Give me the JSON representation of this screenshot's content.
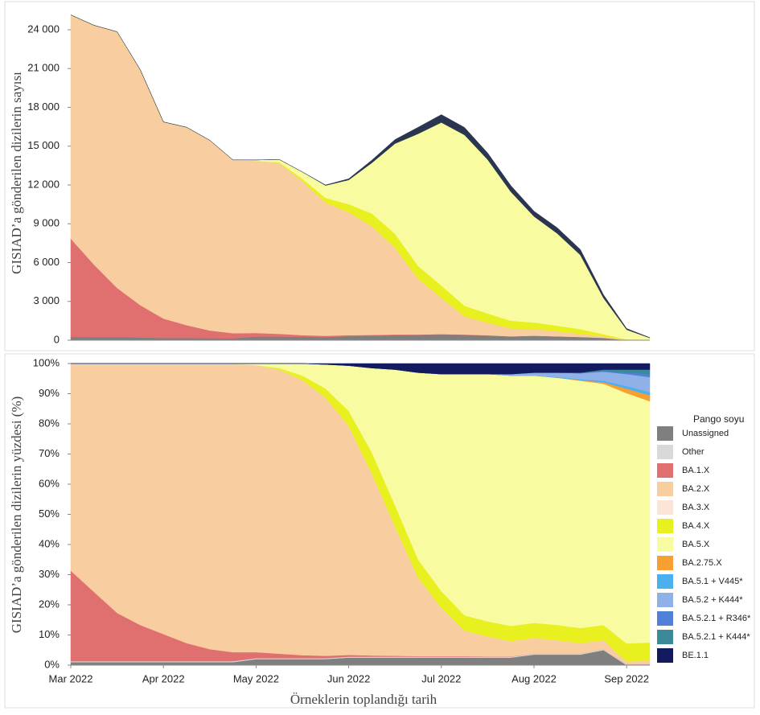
{
  "chart_data": [
    {
      "type": "area",
      "stacked": true,
      "y_label": "GISIAD’a gönderilen dizilerin sayısı",
      "ylim": [
        0,
        25800
      ],
      "yticks": [
        0,
        {
          "value": 3000,
          "label": "3 000"
        },
        {
          "value": 6000,
          "label": "6 000"
        },
        {
          "value": 9000,
          "label": "9 000"
        },
        {
          "value": 12000,
          "label": "12 000"
        },
        {
          "value": 15000,
          "label": "15 000"
        },
        {
          "value": 18000,
          "label": "18 000"
        },
        {
          "value": 21000,
          "label": "21 000"
        },
        {
          "value": 24000,
          "label": "24 000"
        }
      ],
      "series": [
        {
          "color": "#7f7f7f",
          "values": [
            250,
            245,
            240,
            210,
            170,
            165,
            155,
            140,
            280,
            280,
            260,
            240,
            310,
            350,
            390,
            410,
            440,
            410,
            360,
            300,
            350,
            300,
            250,
            180,
            0,
            0
          ]
        },
        {
          "color": "#e07070",
          "values": [
            7600,
            5600,
            3800,
            2500,
            1500,
            1000,
            600,
            400,
            280,
            210,
            130,
            100,
            80,
            60,
            50,
            30,
            30,
            30,
            20,
            0,
            0,
            0,
            0,
            0,
            0,
            0
          ]
        },
        {
          "color": "#f8cda0",
          "values": [
            17300,
            18500,
            19800,
            18200,
            15200,
            15300,
            14700,
            13400,
            13300,
            13200,
            11900,
            10300,
            9500,
            8400,
            6700,
            4300,
            2800,
            1400,
            960,
            610,
            520,
            390,
            250,
            110,
            10,
            0
          ]
        },
        {
          "color": "#e8f020",
          "values": [
            0,
            0,
            0,
            0,
            0,
            0,
            0,
            0,
            0,
            70,
            195,
            360,
            625,
            980,
            1085,
            990,
            960,
            825,
            725,
            600,
            500,
            435,
            350,
            175,
            54,
            12
          ]
        },
        {
          "color": "#f8fba0",
          "values": [
            0,
            0,
            0,
            0,
            0,
            0,
            0,
            0,
            70,
            210,
            520,
            960,
            1875,
            3920,
            6975,
            10230,
            12600,
            13200,
            11890,
            9960,
            8200,
            7130,
            5740,
            2800,
            750,
            160
          ]
        },
        {
          "color": "#2a3550",
          "values": [
            0,
            0,
            0,
            0,
            0,
            0,
            0,
            0,
            0,
            0,
            0,
            36,
            88,
            210,
            310,
            500,
            610,
            580,
            510,
            480,
            400,
            440,
            420,
            250,
            90,
            25
          ]
        }
      ]
    },
    {
      "type": "area",
      "stacked": true,
      "y_label": "GISIAD’a gönderilen dizilerin yüzdesi (%)",
      "x_label": "Örneklerin toplandığı tarih",
      "legend_title": "Pango soyu",
      "categories": [
        "Mar 2022",
        null,
        null,
        null,
        "Apr 2022",
        null,
        null,
        null,
        "May 2022",
        null,
        null,
        null,
        "Jun 2022",
        null,
        null,
        null,
        "Jul 2022",
        null,
        null,
        null,
        "Aug 2022",
        null,
        null,
        null,
        "Sep 2022",
        null
      ],
      "ylim": [
        0,
        100
      ],
      "yticks": [
        {
          "value": 0,
          "label": "0%"
        },
        {
          "value": 10,
          "label": "10%"
        },
        {
          "value": 20,
          "label": "20%"
        },
        {
          "value": 30,
          "label": "30%"
        },
        {
          "value": 40,
          "label": "40%"
        },
        {
          "value": 50,
          "label": "50%"
        },
        {
          "value": 60,
          "label": "60%"
        },
        {
          "value": 70,
          "label": "70%"
        },
        {
          "value": 80,
          "label": "80%"
        },
        {
          "value": 90,
          "label": "90%"
        },
        {
          "value": 100,
          "label": "100%"
        }
      ],
      "series": [
        {
          "name": "Unassigned",
          "color": "#7f7f7f",
          "values": [
            1,
            1,
            1,
            1,
            1,
            1,
            1,
            1,
            2,
            2,
            2,
            2,
            2.5,
            2.5,
            2.5,
            2.5,
            2.5,
            2.5,
            2.5,
            2.5,
            3.5,
            3.5,
            3.5,
            5,
            0,
            0
          ]
        },
        {
          "name": "Other",
          "color": "#d9d9d9",
          "values": [
            0.3,
            0.3,
            0.3,
            0.3,
            0.3,
            0.3,
            0.3,
            0.3,
            0.3,
            0.3,
            0.3,
            0.3,
            0.3,
            0.3,
            0.3,
            0.3,
            0.3,
            0.3,
            0.3,
            0.3,
            0.3,
            0.3,
            0.3,
            0.3,
            0.3,
            0.3
          ]
        },
        {
          "name": "BA.1.X",
          "color": "#e07070",
          "values": [
            30,
            23,
            16,
            12,
            9,
            6,
            4,
            3,
            2,
            1.5,
            1,
            0.8,
            0.6,
            0.4,
            0.3,
            0.2,
            0.2,
            0.2,
            0.1,
            0.1,
            0,
            0,
            0,
            0,
            0,
            0
          ]
        },
        {
          "name": "BA.2.X",
          "color": "#f8cda0",
          "values": [
            68.5,
            75.5,
            82.5,
            86.5,
            89.5,
            92.5,
            94.5,
            95.5,
            95.2,
            94.2,
            91.2,
            85.6,
            75.9,
            60.3,
            42.9,
            26,
            16,
            8.5,
            6.6,
            5.1,
            5.2,
            4.5,
            3.5,
            3,
            0.9,
            1.2
          ]
        },
        {
          "name": "BA.3.X",
          "color": "#fbe5d6",
          "values": [
            0.2,
            0.2,
            0.2,
            0.2,
            0.2,
            0.2,
            0.2,
            0.2,
            0,
            0,
            0,
            0,
            0,
            0,
            0,
            0,
            0,
            0,
            0,
            0,
            0,
            0,
            0,
            0,
            0,
            0
          ]
        },
        {
          "name": "BA.4.X",
          "color": "#e8f020",
          "values": [
            0,
            0,
            0,
            0,
            0,
            0,
            0,
            0,
            0,
            0.5,
            1.5,
            3,
            5,
            7,
            7,
            6,
            5.5,
            5,
            5,
            5,
            5,
            5,
            5,
            5,
            6,
            6
          ]
        },
        {
          "name": "BA.5.X",
          "color": "#f8fba0",
          "values": [
            0,
            0,
            0,
            0,
            0,
            0,
            0,
            0,
            0.5,
            1.5,
            4,
            8,
            15,
            28,
            45,
            62,
            72,
            80,
            82,
            83,
            82,
            82,
            82,
            80,
            83,
            80
          ]
        },
        {
          "name": "BA.2.75.X",
          "color": "#f5a030",
          "values": [
            0,
            0,
            0,
            0,
            0,
            0,
            0,
            0,
            0,
            0,
            0,
            0,
            0,
            0,
            0,
            0,
            0,
            0,
            0,
            0,
            0,
            0,
            0.2,
            0.5,
            1.5,
            2
          ]
        },
        {
          "name": "BA.5.1 + V445*",
          "color": "#4ab0f0",
          "values": [
            0,
            0,
            0,
            0,
            0,
            0,
            0,
            0,
            0,
            0,
            0,
            0,
            0,
            0,
            0,
            0,
            0,
            0,
            0,
            0,
            0,
            0.2,
            0.3,
            0.5,
            0.8,
            1
          ]
        },
        {
          "name": "BA.5.2 + K444*",
          "color": "#90b0e8",
          "values": [
            0,
            0,
            0,
            0,
            0,
            0,
            0,
            0,
            0,
            0,
            0,
            0,
            0,
            0,
            0,
            0,
            0,
            0,
            0,
            0.5,
            1,
            1.5,
            2,
            3,
            4,
            5
          ]
        },
        {
          "name": "BA.5.2.1 + R346*",
          "color": "#5080d8",
          "values": [
            0,
            0,
            0,
            0,
            0,
            0,
            0,
            0,
            0,
            0,
            0,
            0,
            0,
            0,
            0,
            0,
            0,
            0,
            0,
            0,
            0,
            0,
            0,
            0.2,
            0.5,
            1
          ]
        },
        {
          "name": "BA.5.2.1 + K444*",
          "color": "#3a8a9a",
          "values": [
            0,
            0,
            0,
            0,
            0,
            0,
            0,
            0,
            0,
            0,
            0,
            0,
            0,
            0,
            0,
            0,
            0,
            0,
            0,
            0,
            0,
            0,
            0.2,
            0.5,
            1,
            1.5
          ]
        },
        {
          "name": "BE.1.1",
          "color": "#141a60",
          "values": [
            0,
            0,
            0,
            0,
            0,
            0,
            0,
            0,
            0,
            0,
            0,
            0.3,
            0.7,
            1.5,
            2,
            3,
            3.5,
            3.5,
            3.5,
            3.5,
            3,
            3,
            3,
            2,
            2,
            2
          ]
        }
      ]
    }
  ]
}
